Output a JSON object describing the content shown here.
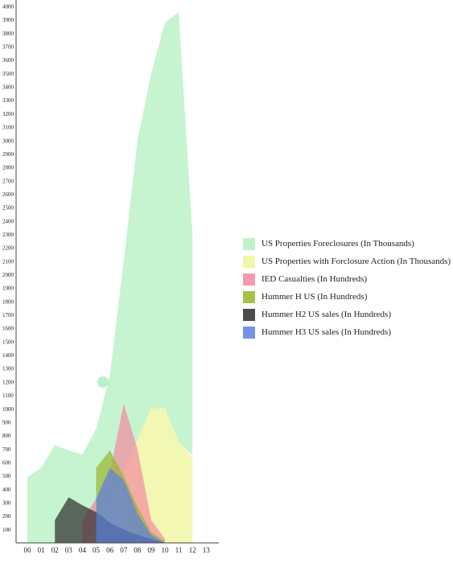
{
  "chart_data": {
    "type": "area",
    "x_labels": [
      "00",
      "01",
      "02",
      "03",
      "04",
      "05",
      "06",
      "07",
      "08",
      "09",
      "10",
      "11",
      "12",
      "13"
    ],
    "y_ticks": [
      100,
      200,
      300,
      400,
      500,
      600,
      700,
      800,
      900,
      1000,
      1100,
      1200,
      1300,
      1400,
      1500,
      1600,
      1700,
      1800,
      1900,
      2000,
      2100,
      2200,
      2300,
      2400,
      2500,
      2600,
      2700,
      2800,
      2900,
      3000,
      3100,
      3200,
      3300,
      3400,
      3500,
      3600,
      3700,
      3800,
      3900,
      4000
    ],
    "ylim": [
      0,
      4000
    ],
    "grid": false,
    "legend_position": "right",
    "series": [
      {
        "name": "US Properties Foreclosures (In Thousands)",
        "color": "#b3f0c0",
        "points": [
          [
            0,
            490
          ],
          [
            1,
            560
          ],
          [
            2,
            730
          ],
          [
            3,
            690
          ],
          [
            4,
            660
          ],
          [
            5,
            850
          ],
          [
            6,
            1250
          ],
          [
            7,
            2100
          ],
          [
            8,
            3000
          ],
          [
            9,
            3500
          ],
          [
            10,
            3880
          ],
          [
            11,
            3960
          ],
          [
            12,
            2300
          ],
          [
            12,
            650
          ],
          [
            11,
            750
          ],
          [
            10,
            1000
          ],
          [
            9,
            1000
          ],
          [
            8,
            760
          ],
          [
            7,
            500
          ],
          [
            6,
            250
          ],
          [
            5,
            100
          ],
          [
            4,
            0
          ],
          [
            0,
            0
          ]
        ]
      },
      {
        "name": "US Properties with Forclosure Action (In Thousands)",
        "color": "#eef59a",
        "points": [
          [
            7,
            550
          ],
          [
            8,
            770
          ],
          [
            9,
            1010
          ],
          [
            10,
            1000
          ],
          [
            11,
            750
          ],
          [
            12,
            640
          ],
          [
            12,
            0
          ],
          [
            7,
            0
          ]
        ]
      },
      {
        "name": "IED Casualties (In Hundreds)",
        "color": "#f48aa0",
        "points": [
          [
            4,
            170
          ],
          [
            5,
            330
          ],
          [
            6,
            520
          ],
          [
            7,
            1040
          ],
          [
            8,
            700
          ],
          [
            9,
            170
          ],
          [
            10,
            30
          ],
          [
            10,
            0
          ],
          [
            4,
            0
          ]
        ]
      },
      {
        "name": "Hummer H US (In Hundreds)",
        "color": "#9ab52a",
        "points": [
          [
            5,
            560
          ],
          [
            6,
            690
          ],
          [
            7,
            500
          ],
          [
            8,
            270
          ],
          [
            9,
            80
          ],
          [
            10,
            10
          ],
          [
            10,
            0
          ],
          [
            5,
            0
          ]
        ]
      },
      {
        "name": "Hummer H2 US sales (In Hundreds)",
        "color": "#2b2b2b",
        "points": [
          [
            2,
            170
          ],
          [
            3,
            340
          ],
          [
            4,
            280
          ],
          [
            5,
            230
          ],
          [
            6,
            150
          ],
          [
            7,
            100
          ],
          [
            8,
            60
          ],
          [
            9,
            30
          ],
          [
            10,
            0
          ],
          [
            2,
            0
          ]
        ]
      },
      {
        "name": "Hummer H3 US sales (In Hundreds)",
        "color": "#5b80e8",
        "points": [
          [
            5,
            330
          ],
          [
            6,
            560
          ],
          [
            7,
            470
          ],
          [
            8,
            220
          ],
          [
            9,
            60
          ],
          [
            10,
            0
          ],
          [
            5,
            0
          ]
        ]
      }
    ]
  }
}
